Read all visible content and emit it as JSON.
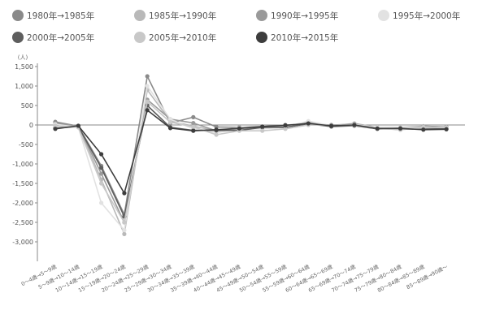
{
  "chart_data": {
    "type": "line",
    "title": "",
    "xlabel": "",
    "ylabel": "",
    "unit_label": "(人)",
    "ylim": [
      -3500,
      1500
    ],
    "yticks": [
      1500,
      1000,
      500,
      0,
      -500,
      -1000,
      -1500,
      -2000,
      -2500,
      -3000
    ],
    "ytick_labels": [
      "1,500",
      "1,000",
      "500",
      "0",
      "-500",
      "-1,000",
      "-1,500",
      "-2,000",
      "-2,500",
      "-3,000"
    ],
    "grid": false,
    "legend_position": "top",
    "categories": [
      "0～4歳→5～9歳",
      "5～9歳→10～14歳",
      "10～14歳→15～19歳",
      "15～19歳→20～24歳",
      "20～24歳→25～29歳",
      "25～29歳→30～34歳",
      "30～34歳→35～39歳",
      "35～39歳→40～44歳",
      "40～44歳→45～49歳",
      "45～49歳→50～54歳",
      "50～54歳→55～59歳",
      "55～59歳→60～64歳",
      "60～64歳→65～69歳",
      "65～69歳→70～74歳",
      "70～74歳→75～79歳",
      "75～79歳→80～84歳",
      "80～84歳→85～89歳",
      "85～89歳→90歳～"
    ],
    "series": [
      {
        "name": "1980年→1985年",
        "color": "#8a8a8a",
        "values": [
          80,
          -30,
          -1050,
          -2300,
          1250,
          50,
          200,
          -50,
          -60,
          -40,
          0,
          30,
          0,
          20,
          -80,
          -120,
          -30,
          -50
        ]
      },
      {
        "name": "1985年→1990年",
        "color": "#b9b9b9",
        "values": [
          30,
          -30,
          -1400,
          -2800,
          900,
          100,
          -30,
          -150,
          -60,
          -60,
          -30,
          50,
          -20,
          40,
          -60,
          -70,
          -30,
          -60
        ]
      },
      {
        "name": "1990年→1995年",
        "color": "#9a9a9a",
        "values": [
          40,
          -20,
          -1250,
          -2500,
          650,
          150,
          50,
          -150,
          -120,
          -80,
          -60,
          70,
          -30,
          30,
          -80,
          -80,
          -50,
          -50
        ]
      },
      {
        "name": "1995年→2000年",
        "color": "#e2e2e2",
        "values": [
          20,
          -60,
          -2000,
          -2700,
          1000,
          150,
          -100,
          -200,
          -100,
          -100,
          -50,
          100,
          -20,
          10,
          -60,
          -90,
          -60,
          -80
        ]
      },
      {
        "name": "2000年→2005年",
        "color": "#5e5e5e",
        "values": [
          -80,
          -40,
          -1100,
          -2350,
          500,
          -60,
          -140,
          -140,
          -140,
          -60,
          -60,
          30,
          -40,
          -20,
          -100,
          -100,
          -100,
          -100
        ]
      },
      {
        "name": "2005年→2010年",
        "color": "#c8c8c8",
        "values": [
          -20,
          -60,
          -1500,
          -2500,
          600,
          70,
          -50,
          -250,
          -150,
          -150,
          -100,
          0,
          -10,
          -10,
          -90,
          -120,
          -70,
          -60
        ]
      },
      {
        "name": "2010年→2015年",
        "color": "#3d3d3d",
        "values": [
          -100,
          -20,
          -750,
          -1750,
          380,
          -80,
          -150,
          -120,
          -90,
          -40,
          -10,
          40,
          -20,
          0,
          -90,
          -90,
          -120,
          -110
        ]
      }
    ]
  }
}
